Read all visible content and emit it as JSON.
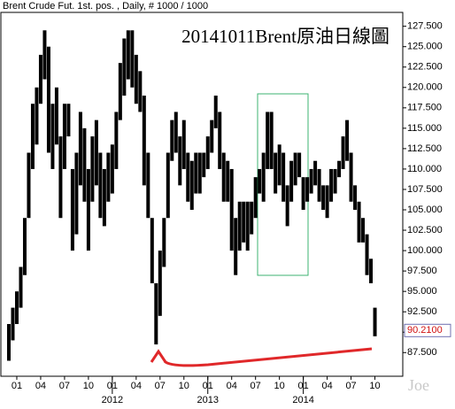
{
  "header": "Brent Crude Fut. 1st. pos. , Daily, # 1000 / 1000",
  "watermark": "Joe",
  "chart_data": {
    "type": "range_bar",
    "title": "20141011Brent原油日線圖",
    "color": "#000000",
    "x": [
      -1,
      -0.5,
      0,
      0.5,
      1,
      1.5,
      2,
      2.5,
      3,
      3.5,
      4,
      4.5,
      5,
      5.5,
      6,
      6.5,
      7,
      7.5,
      8,
      8.5,
      9,
      9.5,
      10,
      10.5,
      11,
      11.5,
      12,
      12.5,
      13,
      13.5,
      14,
      14.5,
      15,
      15.5,
      16,
      16.5,
      17,
      17.5,
      18,
      18.5,
      19,
      19.5,
      20,
      20.5,
      21,
      21.5,
      22,
      22.5,
      23,
      23.5,
      24,
      24.5,
      25,
      25.5,
      26,
      26.5,
      27,
      27.5,
      28,
      28.5,
      29,
      29.5,
      30,
      30.5,
      31,
      31.5,
      32,
      32.5,
      33,
      33.5,
      34,
      34.5,
      35,
      35.5,
      36,
      36.5,
      37,
      37.5,
      38,
      38.5,
      39,
      39.5,
      40,
      40.5,
      41,
      41.5,
      42,
      42.5,
      43,
      43.5,
      44,
      44.5,
      45
    ],
    "low": [
      86.5,
      89,
      91,
      93,
      97,
      104,
      110,
      113,
      118,
      121,
      112,
      110,
      113,
      104,
      110,
      114,
      100,
      102,
      108,
      106,
      100,
      106,
      108,
      104,
      103,
      106,
      107,
      110,
      116,
      119,
      121,
      120,
      118,
      117,
      108,
      104,
      96,
      88.5,
      92,
      98,
      104,
      111,
      112,
      108,
      110,
      106,
      105,
      107,
      107,
      109,
      110,
      112,
      115,
      110,
      106,
      106,
      100,
      97,
      100,
      101,
      100,
      102,
      104,
      107,
      106,
      110,
      110,
      107,
      108,
      106,
      103,
      106,
      108,
      109,
      105,
      106,
      107,
      108,
      106,
      105,
      104,
      106,
      107,
      109,
      110,
      111,
      106,
      105,
      101,
      101,
      97,
      96,
      89.5
    ],
    "high": [
      91,
      93,
      95,
      98,
      104,
      112,
      118,
      120,
      124,
      127,
      125,
      118,
      120,
      114,
      118,
      118,
      110,
      112,
      117,
      115,
      110,
      114,
      116,
      112,
      110,
      112,
      113,
      117,
      123,
      126,
      127,
      127,
      124,
      122,
      119,
      112,
      104,
      96,
      100,
      104,
      112,
      116,
      117,
      114,
      116,
      112,
      111,
      112,
      112,
      112,
      114,
      116,
      119,
      117,
      112,
      111,
      110,
      104,
      106,
      106,
      106,
      106,
      109,
      110,
      112,
      117,
      117,
      112,
      113,
      112,
      108,
      111,
      112,
      112,
      109,
      109,
      110,
      111,
      110,
      108,
      108,
      110,
      110,
      111,
      114,
      116,
      112,
      108,
      106,
      104,
      102,
      99,
      93
    ],
    "last_value": {
      "value": 90.21,
      "label": "90.2100"
    },
    "xlim": [
      -2,
      48.5
    ],
    "ylim": [
      84.6,
      129.2
    ],
    "xticks": [
      {
        "value": 0,
        "label": "01"
      },
      {
        "value": 3,
        "label": "04"
      },
      {
        "value": 6,
        "label": "07"
      },
      {
        "value": 9,
        "label": "10"
      },
      {
        "value": 12,
        "label": "01"
      },
      {
        "value": 15,
        "label": "04"
      },
      {
        "value": 18,
        "label": "07"
      },
      {
        "value": 21,
        "label": "10"
      },
      {
        "value": 24,
        "label": "01"
      },
      {
        "value": 27,
        "label": "04"
      },
      {
        "value": 30,
        "label": "07"
      },
      {
        "value": 33,
        "label": "10"
      },
      {
        "value": 36,
        "label": "01"
      },
      {
        "value": 39,
        "label": "04"
      },
      {
        "value": 42,
        "label": "07"
      },
      {
        "value": 45,
        "label": "10"
      }
    ],
    "year_labels": [
      {
        "value": 12,
        "label": "2012"
      },
      {
        "value": 24,
        "label": "2013"
      },
      {
        "value": 36,
        "label": "2014"
      }
    ],
    "yticks": [
      {
        "value": 87.5,
        "label": "87.500"
      },
      {
        "value": 90,
        "label": "90.000"
      },
      {
        "value": 92.5,
        "label": "92.500"
      },
      {
        "value": 95,
        "label": "95.000"
      },
      {
        "value": 97.5,
        "label": "97.500"
      },
      {
        "value": 100,
        "label": "100.000"
      },
      {
        "value": 102.5,
        "label": "102.500"
      },
      {
        "value": 105,
        "label": "105.000"
      },
      {
        "value": 107.5,
        "label": "107.500"
      },
      {
        "value": 110,
        "label": "110.000"
      },
      {
        "value": 112.5,
        "label": "112.500"
      },
      {
        "value": 115,
        "label": "115.000"
      },
      {
        "value": 117.5,
        "label": "117.500"
      },
      {
        "value": 120,
        "label": "120.000"
      },
      {
        "value": 122.5,
        "label": "122.500"
      },
      {
        "value": 125,
        "label": "125.000"
      },
      {
        "value": 127.5,
        "label": "127.500"
      }
    ],
    "grid": false
  }
}
